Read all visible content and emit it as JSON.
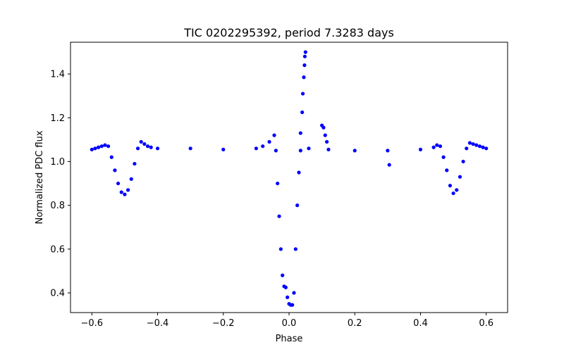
{
  "chart_data": {
    "type": "scatter",
    "title": "TIC 0202295392, period 7.3283 days",
    "xlabel": "Phase",
    "ylabel": "Normalized PDC flux",
    "xlim": [
      -0.665,
      0.665
    ],
    "ylim": [
      0.31,
      1.545
    ],
    "xticks": [
      -0.6,
      -0.4,
      -0.2,
      0.0,
      0.2,
      0.4,
      0.6
    ],
    "xtick_labels": [
      "−0.6",
      "−0.4",
      "−0.2",
      "0.0",
      "0.2",
      "0.4",
      "0.6"
    ],
    "yticks": [
      0.4,
      0.6,
      0.8,
      1.0,
      1.2,
      1.4
    ],
    "ytick_labels": [
      "0.4",
      "0.6",
      "0.8",
      "1.0",
      "1.2",
      "1.4"
    ],
    "grid": false,
    "marker_color": "#0000ff",
    "series": [
      {
        "name": "flux",
        "points": [
          [
            -0.6,
            1.055
          ],
          [
            -0.59,
            1.06
          ],
          [
            -0.58,
            1.065
          ],
          [
            -0.57,
            1.07
          ],
          [
            -0.56,
            1.075
          ],
          [
            -0.55,
            1.07
          ],
          [
            -0.54,
            1.02
          ],
          [
            -0.53,
            0.96
          ],
          [
            -0.52,
            0.9
          ],
          [
            -0.51,
            0.86
          ],
          [
            -0.5,
            0.85
          ],
          [
            -0.49,
            0.87
          ],
          [
            -0.48,
            0.92
          ],
          [
            -0.47,
            0.99
          ],
          [
            -0.46,
            1.06
          ],
          [
            -0.45,
            1.09
          ],
          [
            -0.44,
            1.08
          ],
          [
            -0.43,
            1.07
          ],
          [
            -0.42,
            1.065
          ],
          [
            -0.4,
            1.06
          ],
          [
            -0.3,
            1.06
          ],
          [
            -0.2,
            1.055
          ],
          [
            -0.1,
            1.06
          ],
          [
            -0.08,
            1.07
          ],
          [
            -0.06,
            1.09
          ],
          [
            -0.045,
            1.12
          ],
          [
            -0.04,
            1.05
          ],
          [
            -0.035,
            0.9
          ],
          [
            -0.03,
            0.75
          ],
          [
            -0.025,
            0.6
          ],
          [
            -0.02,
            0.48
          ],
          [
            -0.015,
            0.43
          ],
          [
            -0.01,
            0.425
          ],
          [
            -0.005,
            0.38
          ],
          [
            0.0,
            0.35
          ],
          [
            0.005,
            0.345
          ],
          [
            0.01,
            0.345
          ],
          [
            0.015,
            0.4
          ],
          [
            0.02,
            0.6
          ],
          [
            0.025,
            0.8
          ],
          [
            0.03,
            0.95
          ],
          [
            0.035,
            1.05
          ],
          [
            0.035,
            1.13
          ],
          [
            0.04,
            1.225
          ],
          [
            0.042,
            1.31
          ],
          [
            0.045,
            1.385
          ],
          [
            0.047,
            1.44
          ],
          [
            0.048,
            1.48
          ],
          [
            0.05,
            1.5
          ],
          [
            0.06,
            1.06
          ],
          [
            0.1,
            1.165
          ],
          [
            0.105,
            1.155
          ],
          [
            0.11,
            1.12
          ],
          [
            0.115,
            1.09
          ],
          [
            0.12,
            1.055
          ],
          [
            0.2,
            1.05
          ],
          [
            0.305,
            0.985
          ],
          [
            0.3,
            1.05
          ],
          [
            0.4,
            1.055
          ],
          [
            0.44,
            1.065
          ],
          [
            0.45,
            1.075
          ],
          [
            0.46,
            1.07
          ],
          [
            0.47,
            1.02
          ],
          [
            0.48,
            0.96
          ],
          [
            0.49,
            0.89
          ],
          [
            0.5,
            0.855
          ],
          [
            0.51,
            0.87
          ],
          [
            0.52,
            0.93
          ],
          [
            0.53,
            1.0
          ],
          [
            0.54,
            1.06
          ],
          [
            0.55,
            1.085
          ],
          [
            0.56,
            1.08
          ],
          [
            0.57,
            1.075
          ],
          [
            0.58,
            1.07
          ],
          [
            0.59,
            1.065
          ],
          [
            0.6,
            1.06
          ]
        ]
      }
    ]
  }
}
